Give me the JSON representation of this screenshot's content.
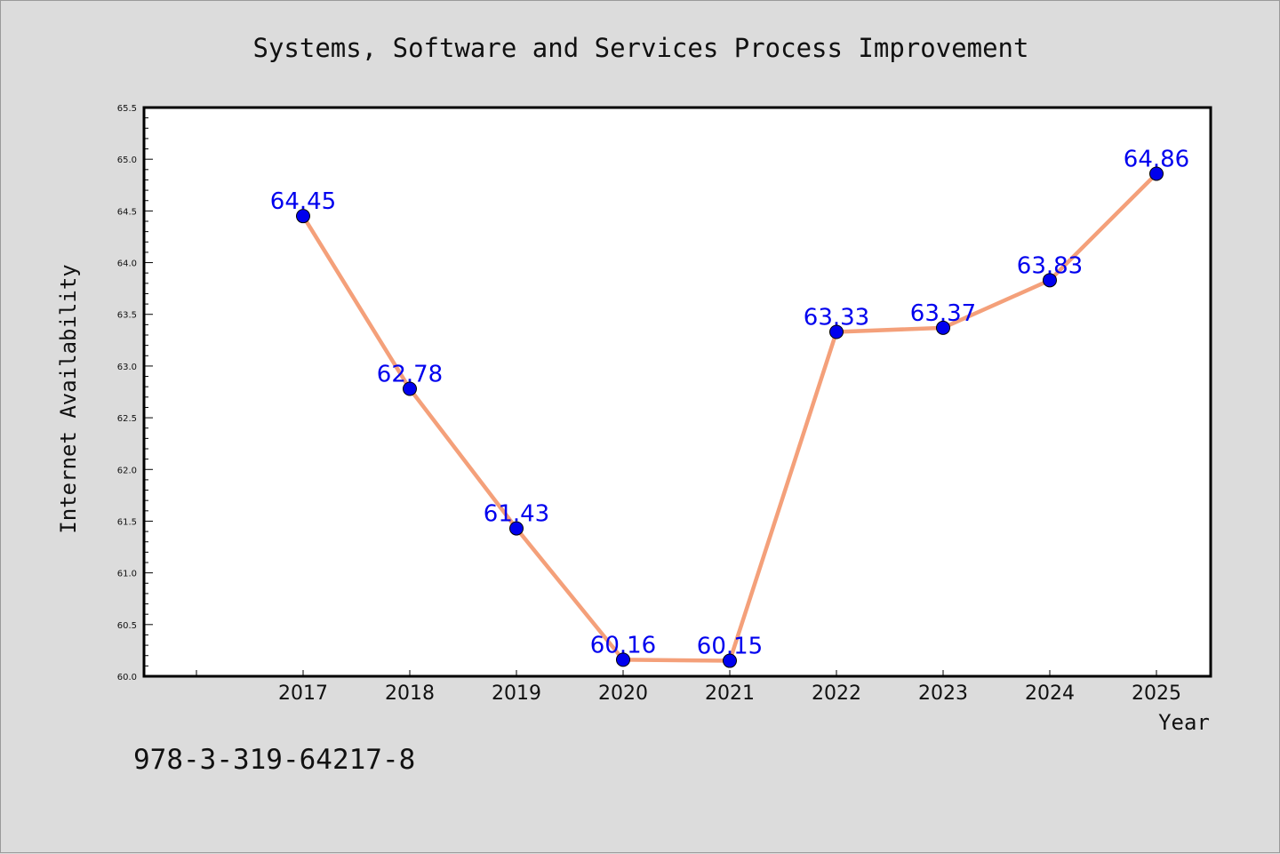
{
  "chart_data": {
    "type": "line",
    "title": "Systems, Software and Services Process Improvement",
    "xlabel": "Year",
    "ylabel": "Internet Availability",
    "categories": [
      "2017",
      "2018",
      "2019",
      "2020",
      "2021",
      "2022",
      "2023",
      "2024",
      "2025"
    ],
    "series": [
      {
        "values": [
          64.45,
          62.78,
          61.43,
          60.16,
          60.15,
          63.33,
          63.37,
          63.83,
          64.86
        ],
        "labels": [
          "64.45",
          "62.78",
          "61.43",
          "60.16",
          "60.15",
          "63.33",
          "63.37",
          "63.83",
          "64.86"
        ]
      }
    ],
    "ylim": [
      60.0,
      65.5
    ],
    "yticks": [
      "60.0",
      "60.5",
      "61.0",
      "61.5",
      "62.0",
      "62.5",
      "63.0",
      "63.5",
      "64.0",
      "64.5",
      "65.0",
      "65.5"
    ],
    "grid": false,
    "line_color": "#f4a07a",
    "marker_color": "#0000ee",
    "label_color": "#0000ee"
  },
  "footer": {
    "isbn": "978-3-319-64217-8"
  }
}
